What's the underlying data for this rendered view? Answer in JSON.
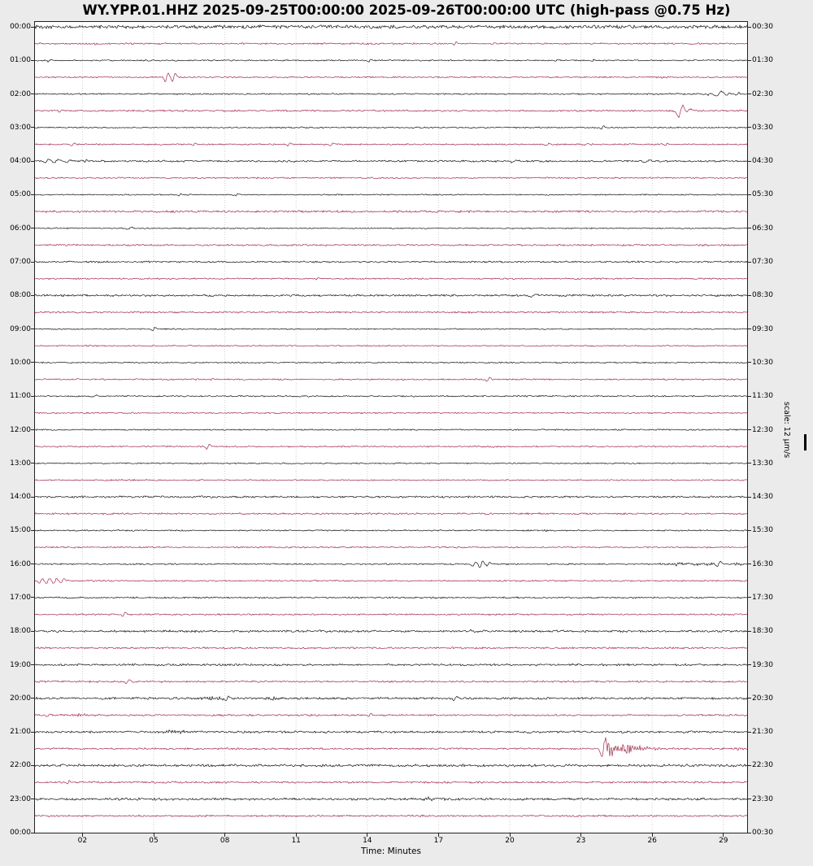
{
  "title": "WY.YPP.01.HHZ 2025-09-25T00:00:00 2025-09-26T00:00:00 UTC (high-pass @0.75 Hz)",
  "x_axis": {
    "label": "Time: Minutes",
    "ticks": [
      {
        "m": 2,
        "label": "02"
      },
      {
        "m": 5,
        "label": "05"
      },
      {
        "m": 8,
        "label": "08"
      },
      {
        "m": 11,
        "label": "11"
      },
      {
        "m": 14,
        "label": "14"
      },
      {
        "m": 17,
        "label": "17"
      },
      {
        "m": 20,
        "label": "20"
      },
      {
        "m": 23,
        "label": "23"
      },
      {
        "m": 26,
        "label": "26"
      },
      {
        "m": 29,
        "label": "29"
      }
    ]
  },
  "y_axis_left": {
    "labels": [
      "00:00",
      "01:00",
      "02:00",
      "03:00",
      "04:00",
      "05:00",
      "06:00",
      "07:00",
      "08:00",
      "09:00",
      "10:00",
      "11:00",
      "12:00",
      "13:00",
      "14:00",
      "15:00",
      "16:00",
      "17:00",
      "18:00",
      "19:00",
      "20:00",
      "21:00",
      "22:00",
      "23:00",
      "00:00"
    ]
  },
  "y_axis_right": {
    "labels": [
      "00:30",
      "01:30",
      "02:30",
      "03:30",
      "04:30",
      "05:30",
      "06:30",
      "07:30",
      "08:30",
      "09:30",
      "10:30",
      "11:30",
      "12:30",
      "13:30",
      "14:30",
      "15:30",
      "16:30",
      "17:30",
      "18:30",
      "19:30",
      "20:30",
      "21:30",
      "22:30",
      "23:30",
      "00:30"
    ]
  },
  "scale": {
    "label": "scale: 12 μm/s"
  },
  "colors": {
    "trace_black": "#141414",
    "trace_red": "#a32b4c",
    "grid": "#cfcfcf",
    "background": "#ebebeb",
    "plot_background": "#ffffff",
    "frame": "#222222"
  },
  "chart_data": {
    "type": "line",
    "subtype": "helicorder-dayplot",
    "station": "WY.YPP.01.HHZ",
    "time_start": "2025-09-25T00:00:00",
    "time_end": "2025-09-26T00:00:00",
    "timezone": "UTC",
    "filter": "high-pass @0.75 Hz",
    "xlabel": "Time: Minutes",
    "x_range_minutes": [
      0,
      30
    ],
    "x_tick_minutes": [
      2,
      5,
      8,
      11,
      14,
      17,
      20,
      23,
      26,
      29
    ],
    "minutes_per_row": 30,
    "num_rows": 48,
    "amplitude_scale": "12 μm/s per row height",
    "grid": "vertical dotted lines every 3 minutes",
    "legend_position": "none",
    "rows": [
      {
        "start": "00:00",
        "color": "black",
        "noise": 1.4,
        "events": [
          [
            8.9,
            1.8,
            0.05
          ]
        ]
      },
      {
        "start": "00:30",
        "color": "red",
        "noise": 0.65,
        "events": [
          [
            2.5,
            1.0,
            0.3
          ],
          [
            17.7,
            2.2,
            0.05
          ],
          [
            19.3,
            1.5,
            0.05
          ]
        ]
      },
      {
        "start": "01:00",
        "color": "black",
        "noise": 0.55,
        "events": [
          [
            0.6,
            1.2,
            0.05
          ],
          [
            4.9,
            1.3,
            0.05
          ],
          [
            14.1,
            1.6,
            0.05
          ],
          [
            23.5,
            1.2,
            0.05
          ]
        ]
      },
      {
        "start": "01:30",
        "color": "red",
        "noise": 0.55,
        "events": [
          [
            5.55,
            5.5,
            0.06
          ],
          [
            5.85,
            5.0,
            0.06
          ],
          [
            26.5,
            0.9,
            0.5
          ]
        ]
      },
      {
        "start": "02:00",
        "color": "black",
        "noise": 0.6,
        "events": [
          [
            28.4,
            1.4,
            0.05
          ],
          [
            28.8,
            3.2,
            0.1
          ],
          [
            29.2,
            1.6,
            0.05
          ],
          [
            29.6,
            1.6,
            0.05
          ]
        ]
      },
      {
        "start": "02:30",
        "color": "red",
        "noise": 0.7,
        "events": [
          [
            1.1,
            1.8,
            0.05
          ],
          [
            6.3,
            1.2,
            0.05
          ],
          [
            27.2,
            8.0,
            0.09
          ],
          [
            27.5,
            2.2,
            0.12
          ]
        ]
      },
      {
        "start": "03:00",
        "color": "black",
        "noise": 0.55,
        "events": [
          [
            23.9,
            1.8,
            0.05
          ]
        ]
      },
      {
        "start": "03:30",
        "color": "red",
        "noise": 0.6,
        "events": [
          [
            1.6,
            1.8,
            0.05
          ],
          [
            6.7,
            1.3,
            0.05
          ],
          [
            10.7,
            1.5,
            0.05
          ],
          [
            12.5,
            2.2,
            0.06
          ],
          [
            21.6,
            1.6,
            0.05
          ],
          [
            23.2,
            1.4,
            0.05
          ],
          [
            26.6,
            1.6,
            0.05
          ]
        ]
      },
      {
        "start": "04:00",
        "color": "black",
        "noise": 0.75,
        "events": [
          [
            0.5,
            2.2,
            0.07
          ],
          [
            0.9,
            2.2,
            0.07
          ],
          [
            1.4,
            1.8,
            0.07
          ],
          [
            2.2,
            1.5,
            0.35
          ],
          [
            20.2,
            1.2,
            0.1
          ],
          [
            25.8,
            1.2,
            0.1
          ]
        ]
      },
      {
        "start": "04:30",
        "color": "red",
        "noise": 0.6,
        "events": []
      },
      {
        "start": "05:00",
        "color": "black",
        "noise": 0.5,
        "events": [
          [
            6.1,
            1.2,
            0.05
          ],
          [
            8.5,
            1.3,
            0.06
          ]
        ]
      },
      {
        "start": "05:30",
        "color": "red",
        "noise": 0.85,
        "events": []
      },
      {
        "start": "06:00",
        "color": "black",
        "noise": 0.5,
        "events": [
          [
            4.0,
            1.1,
            0.08
          ]
        ]
      },
      {
        "start": "06:30",
        "color": "red",
        "noise": 0.7,
        "events": []
      },
      {
        "start": "07:00",
        "color": "black",
        "noise": 0.7,
        "events": [
          [
            4.6,
            1.4,
            0.15
          ]
        ]
      },
      {
        "start": "07:30",
        "color": "red",
        "noise": 0.6,
        "events": [
          [
            11.9,
            1.4,
            0.05
          ]
        ]
      },
      {
        "start": "08:00",
        "color": "black",
        "noise": 0.8,
        "events": [
          [
            21.0,
            1.3,
            0.1
          ]
        ]
      },
      {
        "start": "08:30",
        "color": "red",
        "noise": 0.7,
        "events": []
      },
      {
        "start": "09:00",
        "color": "black",
        "noise": 0.5,
        "events": [
          [
            5.0,
            2.2,
            0.05
          ]
        ]
      },
      {
        "start": "09:30",
        "color": "red",
        "noise": 0.55,
        "events": []
      },
      {
        "start": "10:00",
        "color": "black",
        "noise": 0.55,
        "events": []
      },
      {
        "start": "10:30",
        "color": "red",
        "noise": 0.6,
        "events": [
          [
            19.1,
            2.2,
            0.06
          ]
        ]
      },
      {
        "start": "11:00",
        "color": "black",
        "noise": 0.6,
        "events": [
          [
            2.5,
            1.3,
            0.1
          ]
        ]
      },
      {
        "start": "11:30",
        "color": "red",
        "noise": 0.55,
        "events": [
          [
            13.8,
            0.9,
            0.4
          ]
        ]
      },
      {
        "start": "12:00",
        "color": "black",
        "noise": 0.55,
        "events": []
      },
      {
        "start": "12:30",
        "color": "red",
        "noise": 0.6,
        "events": [
          [
            7.3,
            3.2,
            0.06
          ],
          [
            19.2,
            0.9,
            0.4
          ]
        ]
      },
      {
        "start": "13:00",
        "color": "black",
        "noise": 0.55,
        "events": []
      },
      {
        "start": "13:30",
        "color": "red",
        "noise": 0.55,
        "events": [
          [
            4.0,
            0.9,
            0.4
          ],
          [
            29.5,
            1.0,
            0.2
          ]
        ]
      },
      {
        "start": "14:00",
        "color": "black",
        "noise": 0.8,
        "events": []
      },
      {
        "start": "14:30",
        "color": "red",
        "noise": 0.7,
        "events": []
      },
      {
        "start": "15:00",
        "color": "black",
        "noise": 0.55,
        "events": [
          [
            6.0,
            1.0,
            0.2
          ],
          [
            21.5,
            1.0,
            0.2
          ]
        ]
      },
      {
        "start": "15:30",
        "color": "red",
        "noise": 0.6,
        "events": [
          [
            17.8,
            1.2,
            0.05
          ]
        ]
      },
      {
        "start": "16:00",
        "color": "black",
        "noise": 0.6,
        "events": [
          [
            18.5,
            2.8,
            0.07
          ],
          [
            18.8,
            4.0,
            0.06
          ],
          [
            19.1,
            2.2,
            0.06
          ],
          [
            27.2,
            2.0,
            0.6
          ],
          [
            28.2,
            2.0,
            0.5
          ],
          [
            28.8,
            3.0,
            0.07
          ],
          [
            29.6,
            2.0,
            0.15
          ]
        ]
      },
      {
        "start": "16:30",
        "color": "red",
        "noise": 0.6,
        "events": [
          [
            0.25,
            2.6,
            0.07
          ],
          [
            0.55,
            3.4,
            0.07
          ],
          [
            0.85,
            3.0,
            0.07
          ],
          [
            1.15,
            2.4,
            0.07
          ]
        ]
      },
      {
        "start": "17:00",
        "color": "black",
        "noise": 0.65,
        "events": []
      },
      {
        "start": "17:30",
        "color": "red",
        "noise": 0.65,
        "events": [
          [
            3.75,
            2.6,
            0.06
          ]
        ]
      },
      {
        "start": "18:00",
        "color": "black",
        "noise": 0.85,
        "events": [
          [
            18.3,
            1.4,
            0.06
          ]
        ]
      },
      {
        "start": "18:30",
        "color": "red",
        "noise": 0.75,
        "events": []
      },
      {
        "start": "19:00",
        "color": "black",
        "noise": 0.85,
        "events": []
      },
      {
        "start": "19:30",
        "color": "red",
        "noise": 0.75,
        "events": [
          [
            3.9,
            2.2,
            0.06
          ]
        ]
      },
      {
        "start": "20:00",
        "color": "black",
        "noise": 0.9,
        "events": [
          [
            7.6,
            2.2,
            0.35
          ],
          [
            8.1,
            2.8,
            0.06
          ],
          [
            10.0,
            2.0,
            0.3
          ],
          [
            17.7,
            2.6,
            0.06
          ]
        ]
      },
      {
        "start": "20:30",
        "color": "red",
        "noise": 0.75,
        "events": [
          [
            0.6,
            1.6,
            0.06
          ],
          [
            2.0,
            1.5,
            0.5
          ],
          [
            14.1,
            1.8,
            0.05
          ]
        ]
      },
      {
        "start": "21:00",
        "color": "black",
        "noise": 0.9,
        "events": [
          [
            6.0,
            1.8,
            0.55
          ]
        ]
      },
      {
        "start": "21:30",
        "color": "red",
        "noise": 0.75,
        "events": [
          [
            23.95,
            11.0,
            0.07
          ],
          [
            24.2,
            6.5,
            0.22
          ],
          [
            24.7,
            5.5,
            0.3
          ],
          [
            25.2,
            3.5,
            0.3
          ],
          [
            25.8,
            2.0,
            0.4
          ],
          [
            29.7,
            1.4,
            0.15
          ]
        ]
      },
      {
        "start": "22:00",
        "color": "black",
        "noise": 1.05,
        "events": []
      },
      {
        "start": "22:30",
        "color": "red",
        "noise": 0.75,
        "events": [
          [
            1.4,
            2.0,
            0.05
          ]
        ]
      },
      {
        "start": "23:00",
        "color": "black",
        "noise": 0.95,
        "events": [
          [
            16.8,
            2.0,
            0.4
          ]
        ]
      },
      {
        "start": "23:30",
        "color": "red",
        "noise": 0.7,
        "events": []
      }
    ]
  }
}
